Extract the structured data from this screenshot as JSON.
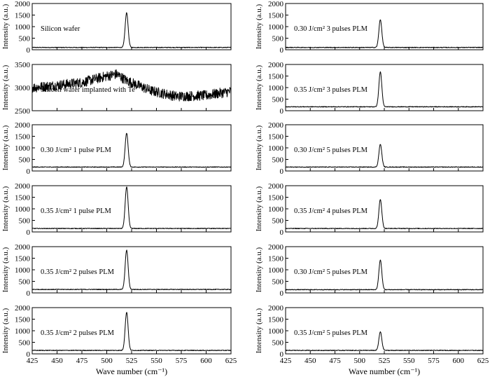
{
  "chart_data": [
    {
      "type": "line",
      "ylabel": "Intensity (a.u.)",
      "xlabel": "",
      "xlim": [
        425,
        625
      ],
      "ylim": [
        0,
        2000
      ],
      "yticks": [
        0,
        500,
        1000,
        1500,
        2000
      ],
      "xticks": [
        "",
        "",
        "",
        "",
        "",
        "",
        "",
        "",
        ""
      ],
      "annotation": "Silicon wafer",
      "series": [
        {
          "baseline": 100,
          "peak": {
            "x": 520,
            "y": 1600,
            "fwhm": 3.5
          },
          "noise": 15
        }
      ]
    },
    {
      "type": "line",
      "ylabel": "Intensity (a.u.)",
      "xlabel": "",
      "xlim": [
        425,
        625
      ],
      "ylim": [
        2500,
        3500
      ],
      "yticks": [
        2500,
        3000,
        3500
      ],
      "xticks": [
        "",
        "",
        "",
        "",
        "",
        "",
        "",
        "",
        ""
      ],
      "annotation": "Silicon wafer implanted with Te",
      "series": [
        {
          "broad_profile": {
            "x": [
              425,
              450,
              475,
              500,
              510,
              520,
              545,
              570,
              600,
              625
            ],
            "y": [
              3000,
              3050,
              3110,
              3250,
              3290,
              3150,
              2930,
              2810,
              2830,
              2920
            ]
          },
          "noise": 110
        }
      ]
    },
    {
      "type": "line",
      "ylabel": "Intensity (a.u.)",
      "xlabel": "",
      "xlim": [
        425,
        625
      ],
      "ylim": [
        0,
        2000
      ],
      "yticks": [
        0,
        500,
        1000,
        1500,
        2000
      ],
      "xticks": [
        "",
        "",
        "",
        "",
        "",
        "",
        "",
        "",
        ""
      ],
      "annotation": "0.30 J/cm² 1 pulse PLM",
      "series": [
        {
          "baseline": 170,
          "peak": {
            "x": 520,
            "y": 1640,
            "fwhm": 3.5
          },
          "noise": 15
        }
      ]
    },
    {
      "type": "line",
      "ylabel": "Intensity (a.u.)",
      "xlabel": "",
      "xlim": [
        425,
        625
      ],
      "ylim": [
        0,
        2000
      ],
      "yticks": [
        0,
        500,
        1000,
        1500,
        2000
      ],
      "xticks": [
        "",
        "",
        "",
        "",
        "",
        "",
        "",
        "",
        ""
      ],
      "annotation": "0.35 J/cm² 1 pulse PLM",
      "series": [
        {
          "baseline": 150,
          "peak": {
            "x": 520,
            "y": 1950,
            "fwhm": 3.5
          },
          "noise": 15
        }
      ]
    },
    {
      "type": "line",
      "ylabel": "Intensity (a.u.)",
      "xlabel": "",
      "xlim": [
        425,
        625
      ],
      "ylim": [
        0,
        2000
      ],
      "yticks": [
        0,
        500,
        1000,
        1500,
        2000
      ],
      "xticks": [
        "",
        "",
        "",
        "",
        "",
        "",
        "",
        "",
        ""
      ],
      "annotation": "0.35 J/cm² 2 pulses PLM",
      "series": [
        {
          "baseline": 150,
          "peak": {
            "x": 520,
            "y": 1850,
            "fwhm": 3.5
          },
          "noise": 15
        }
      ]
    },
    {
      "type": "line",
      "ylabel": "Intensity (a.u.)",
      "xlabel": "Wave number (cm⁻¹)",
      "xlim": [
        425,
        625
      ],
      "ylim": [
        0,
        2000
      ],
      "yticks": [
        0,
        500,
        1000,
        1500,
        2000
      ],
      "xticks": [
        "425",
        "450",
        "475",
        "500",
        "525",
        "550",
        "575",
        "600",
        "625"
      ],
      "annotation": "0.35 J/cm² 2 pulses PLM",
      "series": [
        {
          "baseline": 150,
          "peak": {
            "x": 520,
            "y": 1800,
            "fwhm": 3.5
          },
          "noise": 15
        }
      ]
    },
    {
      "type": "line",
      "ylabel": "Intensity (a.u.)",
      "xlabel": "",
      "xlim": [
        425,
        625
      ],
      "ylim": [
        0,
        2000
      ],
      "yticks": [
        0,
        500,
        1000,
        1500,
        2000
      ],
      "xticks": [
        "",
        "",
        "",
        "",
        "",
        "",
        "",
        "",
        ""
      ],
      "annotation": "0.30 J/cm² 3 pulses PLM",
      "series": [
        {
          "baseline": 100,
          "peak": {
            "x": 521,
            "y": 1300,
            "fwhm": 3.5
          },
          "noise": 15
        }
      ]
    },
    {
      "type": "line",
      "ylabel": "Intensity (a.u.)",
      "xlabel": "",
      "xlim": [
        425,
        625
      ],
      "ylim": [
        0,
        2000
      ],
      "yticks": [
        0,
        500,
        1000,
        1500,
        2000
      ],
      "xticks": [
        "",
        "",
        "",
        "",
        "",
        "",
        "",
        "",
        ""
      ],
      "annotation": "0.35 J/cm² 3 pulses PLM",
      "series": [
        {
          "baseline": 170,
          "peak": {
            "x": 521,
            "y": 1680,
            "fwhm": 3.5
          },
          "noise": 15
        }
      ]
    },
    {
      "type": "line",
      "ylabel": "Intensity (a.u.)",
      "xlabel": "",
      "xlim": [
        425,
        625
      ],
      "ylim": [
        0,
        2000
      ],
      "yticks": [
        0,
        500,
        1000,
        1500,
        2000
      ],
      "xticks": [
        "",
        "",
        "",
        "",
        "",
        "",
        "",
        "",
        ""
      ],
      "annotation": "0.30 J/cm² 5 pulses PLM",
      "series": [
        {
          "baseline": 170,
          "peak": {
            "x": 521,
            "y": 1150,
            "fwhm": 3.5
          },
          "noise": 15
        }
      ]
    },
    {
      "type": "line",
      "ylabel": "Intensity (a.u.)",
      "xlabel": "",
      "xlim": [
        425,
        625
      ],
      "ylim": [
        0,
        2000
      ],
      "yticks": [
        0,
        500,
        1000,
        1500,
        2000
      ],
      "xticks": [
        "",
        "",
        "",
        "",
        "",
        "",
        "",
        "",
        ""
      ],
      "annotation": "0.35 J/cm² 4 pulses PLM",
      "series": [
        {
          "baseline": 150,
          "peak": {
            "x": 521,
            "y": 1400,
            "fwhm": 3.5
          },
          "noise": 15
        }
      ]
    },
    {
      "type": "line",
      "ylabel": "Intensity (a.u.)",
      "xlabel": "",
      "xlim": [
        425,
        625
      ],
      "ylim": [
        0,
        2000
      ],
      "yticks": [
        0,
        500,
        1000,
        1500,
        2000
      ],
      "xticks": [
        "",
        "",
        "",
        "",
        "",
        "",
        "",
        "",
        ""
      ],
      "annotation": "0.30 J/cm² 5 pulses PLM",
      "series": [
        {
          "baseline": 140,
          "peak": {
            "x": 521,
            "y": 1420,
            "fwhm": 3.5
          },
          "noise": 15
        }
      ]
    },
    {
      "type": "line",
      "ylabel": "Intensity (a.u.)",
      "xlabel": "Wave number (cm⁻¹)",
      "xlim": [
        425,
        625
      ],
      "ylim": [
        0,
        2000
      ],
      "yticks": [
        0,
        500,
        1000,
        1500,
        2000
      ],
      "xticks": [
        "425",
        "450",
        "475",
        "500",
        "525",
        "550",
        "575",
        "600",
        "625"
      ],
      "annotation": "0.35 J/cm² 5 pulses PLM",
      "series": [
        {
          "baseline": 150,
          "peak": {
            "x": 521,
            "y": 950,
            "fwhm": 3.5
          },
          "noise": 15
        }
      ]
    }
  ]
}
